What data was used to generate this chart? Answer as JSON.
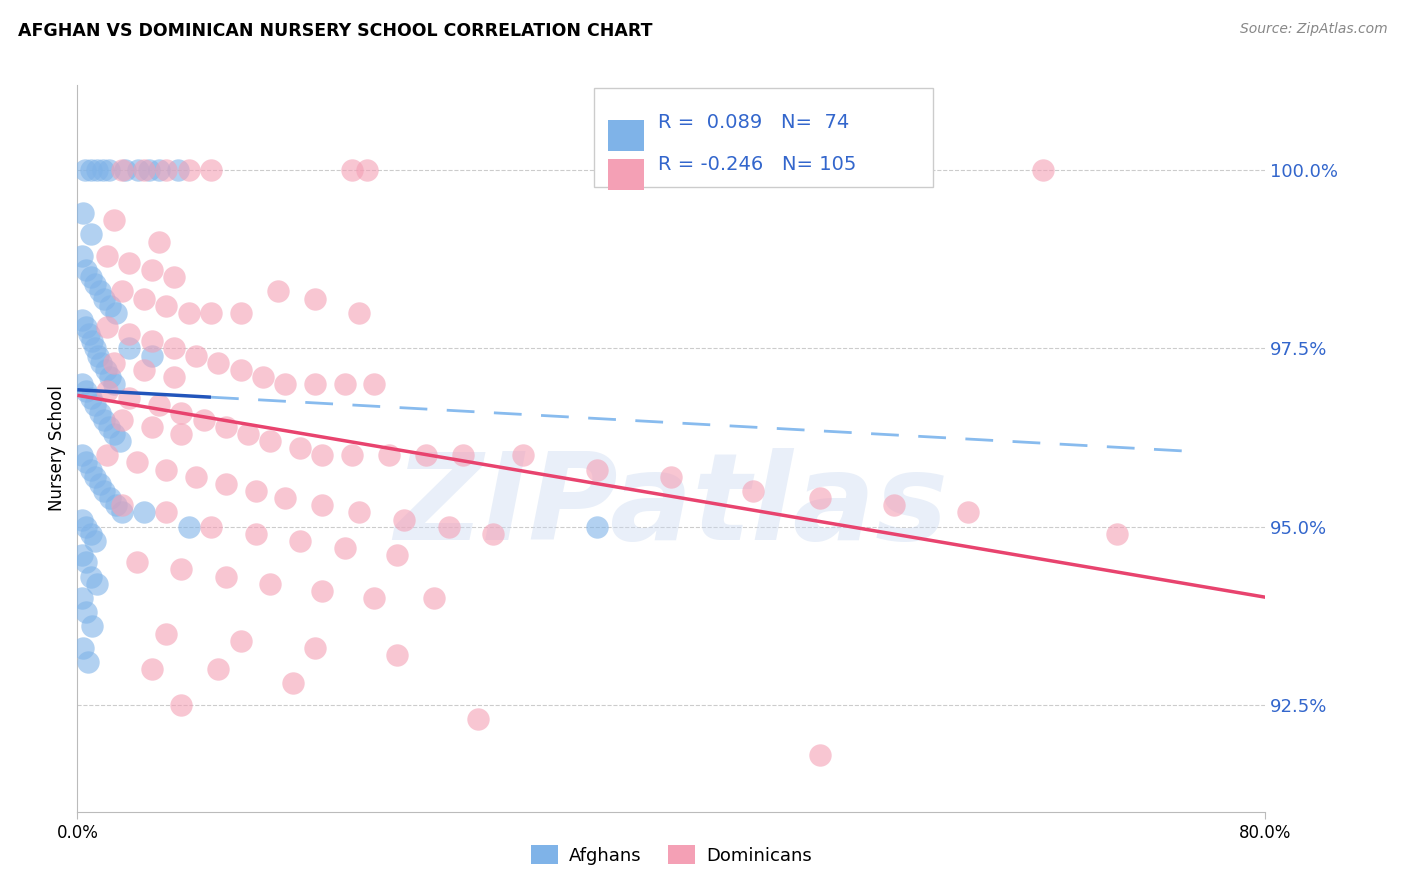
{
  "title": "AFGHAN VS DOMINICAN NURSERY SCHOOL CORRELATION CHART",
  "source": "Source: ZipAtlas.com",
  "ylabel": "Nursery School",
  "y_ticks": [
    92.5,
    95.0,
    97.5,
    100.0
  ],
  "y_tick_labels": [
    "92.5%",
    "95.0%",
    "97.5%",
    "100.0%"
  ],
  "x_min": 0.0,
  "x_max": 80.0,
  "y_min": 91.0,
  "y_max": 101.2,
  "afghan_R": 0.089,
  "afghan_N": 74,
  "dominican_R": -0.246,
  "dominican_N": 105,
  "afghan_color": "#7fb3e8",
  "dominican_color": "#f4a0b5",
  "afghan_line_color": "#2255bb",
  "dominican_line_color": "#e8436e",
  "dashed_line_color": "#88bbee",
  "watermark_color": "#c8d8f0",
  "watermark_text": "ZIPatlas",
  "tick_color_right": "#3366cc",
  "legend_R_color": "#3366cc",
  "afghan_pts": [
    [
      0.5,
      100.0
    ],
    [
      0.9,
      100.0
    ],
    [
      1.3,
      100.0
    ],
    [
      1.7,
      100.0
    ],
    [
      2.1,
      100.0
    ],
    [
      3.2,
      100.0
    ],
    [
      4.1,
      100.0
    ],
    [
      4.8,
      100.0
    ],
    [
      5.5,
      100.0
    ],
    [
      6.8,
      100.0
    ],
    [
      0.4,
      99.4
    ],
    [
      0.9,
      99.1
    ],
    [
      0.3,
      98.8
    ],
    [
      0.6,
      98.6
    ],
    [
      0.9,
      98.5
    ],
    [
      1.2,
      98.4
    ],
    [
      1.5,
      98.3
    ],
    [
      1.8,
      98.2
    ],
    [
      2.2,
      98.1
    ],
    [
      2.6,
      98.0
    ],
    [
      0.3,
      97.9
    ],
    [
      0.6,
      97.8
    ],
    [
      0.8,
      97.7
    ],
    [
      1.0,
      97.6
    ],
    [
      1.2,
      97.5
    ],
    [
      1.4,
      97.4
    ],
    [
      1.6,
      97.3
    ],
    [
      1.9,
      97.2
    ],
    [
      2.2,
      97.1
    ],
    [
      2.5,
      97.0
    ],
    [
      0.3,
      97.0
    ],
    [
      0.6,
      96.9
    ],
    [
      0.9,
      96.8
    ],
    [
      1.2,
      96.7
    ],
    [
      1.5,
      96.6
    ],
    [
      1.8,
      96.5
    ],
    [
      2.1,
      96.4
    ],
    [
      2.5,
      96.3
    ],
    [
      2.9,
      96.2
    ],
    [
      0.3,
      96.0
    ],
    [
      0.6,
      95.9
    ],
    [
      0.9,
      95.8
    ],
    [
      1.2,
      95.7
    ],
    [
      1.5,
      95.6
    ],
    [
      1.8,
      95.5
    ],
    [
      2.2,
      95.4
    ],
    [
      2.6,
      95.3
    ],
    [
      3.0,
      95.2
    ],
    [
      0.3,
      95.1
    ],
    [
      0.6,
      95.0
    ],
    [
      0.9,
      94.9
    ],
    [
      1.2,
      94.8
    ],
    [
      0.3,
      94.6
    ],
    [
      0.6,
      94.5
    ],
    [
      0.9,
      94.3
    ],
    [
      1.3,
      94.2
    ],
    [
      0.3,
      94.0
    ],
    [
      0.6,
      93.8
    ],
    [
      1.0,
      93.6
    ],
    [
      0.4,
      93.3
    ],
    [
      0.7,
      93.1
    ],
    [
      3.5,
      97.5
    ],
    [
      5.0,
      97.4
    ],
    [
      4.5,
      95.2
    ],
    [
      7.5,
      95.0
    ],
    [
      35.0,
      95.0
    ]
  ],
  "dominican_pts": [
    [
      3.0,
      100.0
    ],
    [
      4.5,
      100.0
    ],
    [
      6.0,
      100.0
    ],
    [
      7.5,
      100.0
    ],
    [
      9.0,
      100.0
    ],
    [
      18.5,
      100.0
    ],
    [
      19.5,
      100.0
    ],
    [
      65.0,
      100.0
    ],
    [
      2.5,
      99.3
    ],
    [
      5.5,
      99.0
    ],
    [
      2.0,
      98.8
    ],
    [
      3.5,
      98.7
    ],
    [
      5.0,
      98.6
    ],
    [
      6.5,
      98.5
    ],
    [
      3.0,
      98.3
    ],
    [
      4.5,
      98.2
    ],
    [
      6.0,
      98.1
    ],
    [
      7.5,
      98.0
    ],
    [
      9.0,
      98.0
    ],
    [
      11.0,
      98.0
    ],
    [
      13.5,
      98.3
    ],
    [
      16.0,
      98.2
    ],
    [
      19.0,
      98.0
    ],
    [
      2.0,
      97.8
    ],
    [
      3.5,
      97.7
    ],
    [
      5.0,
      97.6
    ],
    [
      6.5,
      97.5
    ],
    [
      8.0,
      97.4
    ],
    [
      9.5,
      97.3
    ],
    [
      11.0,
      97.2
    ],
    [
      12.5,
      97.1
    ],
    [
      14.0,
      97.0
    ],
    [
      16.0,
      97.0
    ],
    [
      18.0,
      97.0
    ],
    [
      20.0,
      97.0
    ],
    [
      2.5,
      97.3
    ],
    [
      4.5,
      97.2
    ],
    [
      6.5,
      97.1
    ],
    [
      2.0,
      96.9
    ],
    [
      3.5,
      96.8
    ],
    [
      5.5,
      96.7
    ],
    [
      7.0,
      96.6
    ],
    [
      8.5,
      96.5
    ],
    [
      10.0,
      96.4
    ],
    [
      11.5,
      96.3
    ],
    [
      13.0,
      96.2
    ],
    [
      15.0,
      96.1
    ],
    [
      16.5,
      96.0
    ],
    [
      18.5,
      96.0
    ],
    [
      21.0,
      96.0
    ],
    [
      23.5,
      96.0
    ],
    [
      26.0,
      96.0
    ],
    [
      3.0,
      96.5
    ],
    [
      5.0,
      96.4
    ],
    [
      7.0,
      96.3
    ],
    [
      30.0,
      96.0
    ],
    [
      35.0,
      95.8
    ],
    [
      40.0,
      95.7
    ],
    [
      45.5,
      95.5
    ],
    [
      50.0,
      95.4
    ],
    [
      55.0,
      95.3
    ],
    [
      60.0,
      95.2
    ],
    [
      70.0,
      94.9
    ],
    [
      2.0,
      96.0
    ],
    [
      4.0,
      95.9
    ],
    [
      6.0,
      95.8
    ],
    [
      8.0,
      95.7
    ],
    [
      10.0,
      95.6
    ],
    [
      12.0,
      95.5
    ],
    [
      14.0,
      95.4
    ],
    [
      16.5,
      95.3
    ],
    [
      19.0,
      95.2
    ],
    [
      22.0,
      95.1
    ],
    [
      25.0,
      95.0
    ],
    [
      28.0,
      94.9
    ],
    [
      3.0,
      95.3
    ],
    [
      6.0,
      95.2
    ],
    [
      9.0,
      95.0
    ],
    [
      12.0,
      94.9
    ],
    [
      15.0,
      94.8
    ],
    [
      18.0,
      94.7
    ],
    [
      21.5,
      94.6
    ],
    [
      4.0,
      94.5
    ],
    [
      7.0,
      94.4
    ],
    [
      10.0,
      94.3
    ],
    [
      13.0,
      94.2
    ],
    [
      16.5,
      94.1
    ],
    [
      20.0,
      94.0
    ],
    [
      24.0,
      94.0
    ],
    [
      6.0,
      93.5
    ],
    [
      11.0,
      93.4
    ],
    [
      16.0,
      93.3
    ],
    [
      21.5,
      93.2
    ],
    [
      5.0,
      93.0
    ],
    [
      9.5,
      93.0
    ],
    [
      14.5,
      92.8
    ],
    [
      7.0,
      92.5
    ],
    [
      27.0,
      92.3
    ],
    [
      50.0,
      91.8
    ]
  ],
  "af_trend_x0": 0.0,
  "af_trend_x_solid_end": 9.0,
  "af_trend_x_dash_end": 75.0,
  "dom_trend_x0": 0.0,
  "dom_trend_x_end": 80.0
}
